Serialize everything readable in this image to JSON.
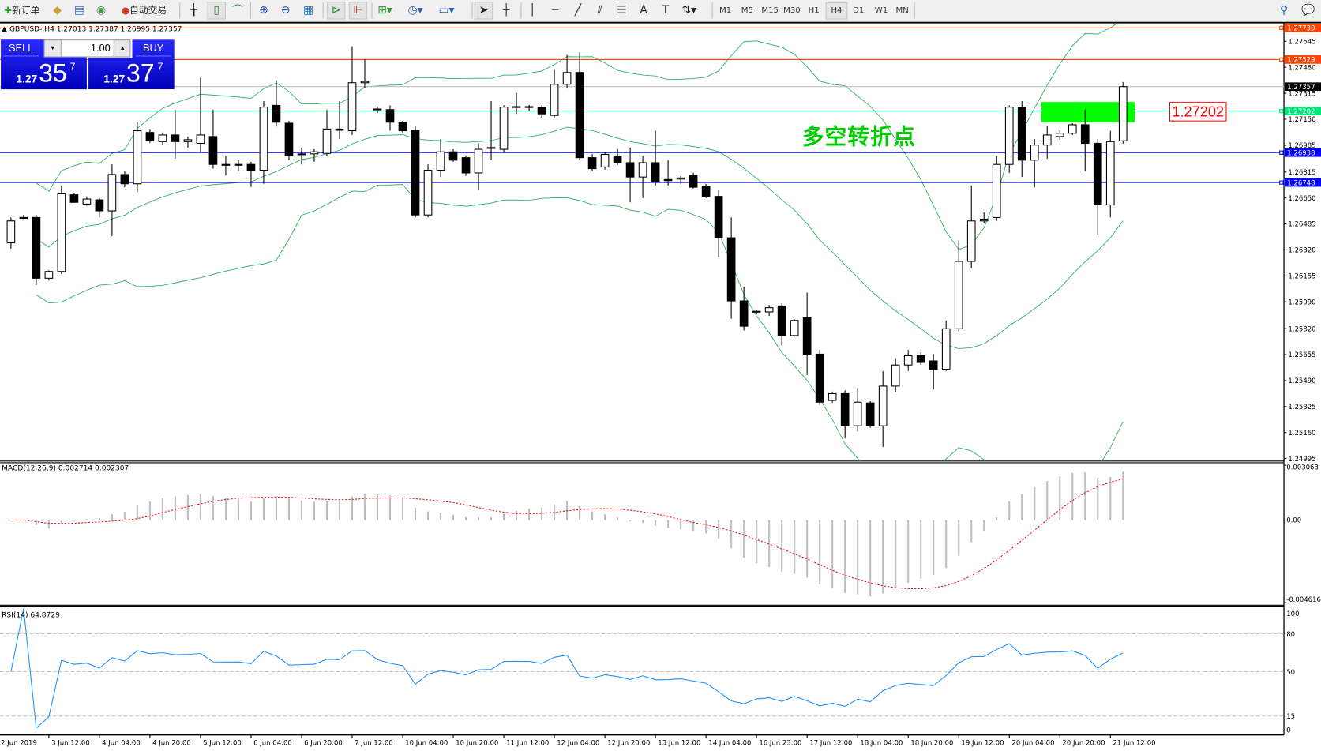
{
  "toolbar": {
    "new_order": "新订单",
    "auto_trading": "自动交易",
    "timeframes": [
      "M1",
      "M5",
      "M15",
      "M30",
      "H1",
      "H4",
      "D1",
      "W1",
      "MN"
    ],
    "active_timeframe": "H4"
  },
  "chart": {
    "info": "GBPUSD-,H4  1.27013 1.27387 1.26995 1.27357",
    "annotation_text": "多空转折点",
    "annotation_price": "1.27202",
    "annotation_box_color": "#00ff00",
    "bollinger_color": "#3cb371"
  },
  "trade_panel": {
    "sell_label": "SELL",
    "buy_label": "BUY",
    "lot": "1.00",
    "sell_prefix": "1.27",
    "sell_big": "35",
    "sell_sup": "7",
    "buy_prefix": "1.27",
    "buy_big": "37",
    "buy_sup": "7"
  },
  "price_axis": {
    "labels": [
      "1.27645",
      "1.27480",
      "1.27315",
      "1.27150",
      "1.26985",
      "1.26815",
      "1.26650",
      "1.26485",
      "1.26320",
      "1.26155",
      "1.25990",
      "1.25820",
      "1.25655",
      "1.25490",
      "1.25325",
      "1.25160",
      "1.24995"
    ],
    "hlines": [
      {
        "price": "1.27730",
        "color": "#ff4500"
      },
      {
        "price": "1.27529",
        "color": "#ff4500"
      },
      {
        "price": "1.27357",
        "color": "#000000",
        "line": "#c0c0c0"
      },
      {
        "price": "1.27202",
        "color": "#00e87a"
      },
      {
        "price": "1.26938",
        "color": "#0000ff"
      },
      {
        "price": "1.26748",
        "color": "#0000ff"
      }
    ]
  },
  "macd": {
    "label": "MACD(12,26,9) 0.002714 0.002307",
    "axis": [
      "0.003063",
      "0.00",
      "-0.004616"
    ]
  },
  "rsi": {
    "label": "RSI(14) 64.8729",
    "axis": [
      "100",
      "80",
      "50",
      "15",
      "0"
    ],
    "color": "#1e90ff"
  },
  "time_axis": {
    "labels": [
      "2 Jun 2019",
      "3 Jun 12:00",
      "4 Jun 04:00",
      "4 Jun 20:00",
      "5 Jun 12:00",
      "6 Jun 04:00",
      "6 Jun 20:00",
      "7 Jun 12:00",
      "10 Jun 04:00",
      "10 Jun 20:00",
      "11 Jun 12:00",
      "12 Jun 04:00",
      "12 Jun 20:00",
      "13 Jun 12:00",
      "14 Jun 04:00",
      "16 Jun 23:00",
      "17 Jun 12:00",
      "18 Jun 04:00",
      "18 Jun 20:00",
      "19 Jun 12:00",
      "20 Jun 04:00",
      "20 Jun 20:00",
      "21 Jun 12:00"
    ]
  },
  "chart_data": {
    "type": "candlestick",
    "symbol": "GBPUSD-",
    "timeframe": "H4",
    "ylim": [
      1.24995,
      1.2773
    ],
    "ohlc": [
      [
        1.26365,
        1.26526,
        1.26328,
        1.26504
      ],
      [
        1.26526,
        1.26542,
        1.26515,
        1.26526
      ],
      [
        1.26526,
        1.26542,
        1.26097,
        1.2614
      ],
      [
        1.2614,
        1.2619,
        1.26125,
        1.26183
      ],
      [
        1.26183,
        1.26729,
        1.26167,
        1.26676
      ],
      [
        1.2667,
        1.2668,
        1.26622,
        1.26622
      ],
      [
        1.26611,
        1.2666,
        1.266,
        1.26643
      ],
      [
        1.26638,
        1.26649,
        1.26526,
        1.26568
      ],
      [
        1.26568,
        1.26863,
        1.26408,
        1.26799
      ],
      [
        1.26799,
        1.2682,
        1.26718,
        1.2674
      ],
      [
        1.2674,
        1.27131,
        1.26686,
        1.27077
      ],
      [
        1.27066,
        1.27088,
        1.27,
        1.27013
      ],
      [
        1.27008,
        1.27066,
        1.26986,
        1.2705
      ],
      [
        1.2705,
        1.27211,
        1.269,
        1.27008
      ],
      [
        1.27008,
        1.2704,
        1.2697,
        1.2702
      ],
      [
        1.26997,
        1.27414,
        1.26943,
        1.2705
      ],
      [
        1.2704,
        1.27211,
        1.26836,
        1.26863
      ],
      [
        1.26863,
        1.26917,
        1.26793,
        1.2686
      ],
      [
        1.2686,
        1.2689,
        1.2682,
        1.26863
      ],
      [
        1.26863,
        1.2688,
        1.2672,
        1.26826
      ],
      [
        1.26826,
        1.27265,
        1.2674,
        1.27227
      ],
      [
        1.27238,
        1.27398,
        1.27104,
        1.27131
      ],
      [
        1.27125,
        1.2714,
        1.2689,
        1.26917
      ],
      [
        1.26927,
        1.2697,
        1.26863,
        1.2693
      ],
      [
        1.2693,
        1.2696,
        1.2688,
        1.26943
      ],
      [
        1.26933,
        1.27211,
        1.26917,
        1.27088
      ],
      [
        1.27088,
        1.27265,
        1.27024,
        1.2708
      ],
      [
        1.27077,
        1.27613,
        1.2705,
        1.27382
      ],
      [
        1.27382,
        1.27532,
        1.27345,
        1.2739
      ],
      [
        1.27215,
        1.2723,
        1.2719,
        1.27211
      ],
      [
        1.27211,
        1.27238,
        1.27077,
        1.27131
      ],
      [
        1.27131,
        1.2714,
        1.2706,
        1.27077
      ],
      [
        1.27077,
        1.27104,
        1.26526,
        1.26542
      ],
      [
        1.26542,
        1.26863,
        1.26526,
        1.26826
      ],
      [
        1.26826,
        1.27024,
        1.26783,
        1.26943
      ],
      [
        1.26943,
        1.2696,
        1.2688,
        1.2689
      ],
      [
        1.26906,
        1.2692,
        1.2679,
        1.26809
      ],
      [
        1.26809,
        1.26997,
        1.26702,
        1.26959
      ],
      [
        1.26965,
        1.27265,
        1.2689,
        1.2697
      ],
      [
        1.26959,
        1.27238,
        1.2694,
        1.27227
      ],
      [
        1.27227,
        1.27318,
        1.27184,
        1.2723
      ],
      [
        1.2723,
        1.2724,
        1.272,
        1.27227
      ],
      [
        1.27227,
        1.2724,
        1.2716,
        1.27184
      ],
      [
        1.27174,
        1.27463,
        1.27157,
        1.27372
      ],
      [
        1.27372,
        1.27559,
        1.27345,
        1.27447
      ],
      [
        1.27447,
        1.27575,
        1.2689,
        1.26906
      ],
      [
        1.26906,
        1.2693,
        1.2682,
        1.26836
      ],
      [
        1.26847,
        1.2694,
        1.2683,
        1.26927
      ],
      [
        1.26917,
        1.2696,
        1.2686,
        1.26874
      ],
      [
        1.26874,
        1.2697,
        1.26622,
        1.26783
      ],
      [
        1.26783,
        1.26917,
        1.26649,
        1.26874
      ],
      [
        1.26874,
        1.27077,
        1.26729,
        1.26756
      ],
      [
        1.26767,
        1.2689,
        1.26729,
        1.2676
      ],
      [
        1.2677,
        1.2679,
        1.2674,
        1.26777
      ],
      [
        1.26793,
        1.2681,
        1.2671,
        1.26718
      ],
      [
        1.26724,
        1.2674,
        1.2665,
        1.2666
      ],
      [
        1.2666,
        1.26702,
        1.26274,
        1.26397
      ],
      [
        1.26397,
        1.26526,
        1.25883,
        1.25996
      ],
      [
        1.25996,
        1.26087,
        1.25808,
        1.25835
      ],
      [
        1.25926,
        1.2594,
        1.2591,
        1.2593
      ],
      [
        1.25926,
        1.2597,
        1.259,
        1.25953
      ],
      [
        1.25964,
        1.2598,
        1.25712,
        1.25776
      ],
      [
        1.25776,
        1.2588,
        1.2577,
        1.25872
      ],
      [
        1.25889,
        1.26049,
        1.25524,
        1.25658
      ],
      [
        1.25658,
        1.25685,
        1.25337,
        1.25353
      ],
      [
        1.25364,
        1.2542,
        1.2535,
        1.25407
      ],
      [
        1.25407,
        1.25428,
        1.25123,
        1.25203
      ],
      [
        1.25203,
        1.25444,
        1.25166,
        1.25353
      ],
      [
        1.25348,
        1.2536,
        1.2519,
        1.25203
      ],
      [
        1.25203,
        1.25551,
        1.25069,
        1.25455
      ],
      [
        1.25455,
        1.25632,
        1.25417,
        1.25589
      ],
      [
        1.25589,
        1.25685,
        1.25551,
        1.25648
      ],
      [
        1.25648,
        1.2567,
        1.2559,
        1.25605
      ],
      [
        1.25615,
        1.25658,
        1.25434,
        1.25562
      ],
      [
        1.25562,
        1.25872,
        1.25551,
        1.25819
      ],
      [
        1.25819,
        1.26381,
        1.25803,
        1.26247
      ],
      [
        1.26247,
        1.26729,
        1.26204,
        1.26504
      ],
      [
        1.26504,
        1.26558,
        1.26488,
        1.26515
      ],
      [
        1.26526,
        1.26917,
        1.26504,
        1.26863
      ],
      [
        1.26863,
        1.27238,
        1.26809,
        1.27227
      ],
      [
        1.27227,
        1.27265,
        1.26783,
        1.2689
      ],
      [
        1.2689,
        1.27024,
        1.26718,
        1.26986
      ],
      [
        1.26986,
        1.27104,
        1.269,
        1.2705
      ],
      [
        1.2704,
        1.2708,
        1.2702,
        1.27061
      ],
      [
        1.27061,
        1.27125,
        1.2705,
        1.27115
      ],
      [
        1.27115,
        1.27211,
        1.2682,
        1.26997
      ],
      [
        1.26997,
        1.27024,
        1.26419,
        1.26606
      ],
      [
        1.26606,
        1.27077,
        1.26526,
        1.27008
      ],
      [
        1.27013,
        1.27387,
        1.26995,
        1.27357
      ]
    ],
    "indicators": {
      "bollinger": {
        "period": 20,
        "deviation": 2
      },
      "macd": {
        "fast": 12,
        "slow": 26,
        "signal": 9,
        "ylim": [
          -0.004616,
          0.003063
        ]
      },
      "rsi": {
        "period": 14,
        "levels": [
          80,
          50,
          15
        ],
        "ylim": [
          0,
          100
        ]
      }
    }
  }
}
